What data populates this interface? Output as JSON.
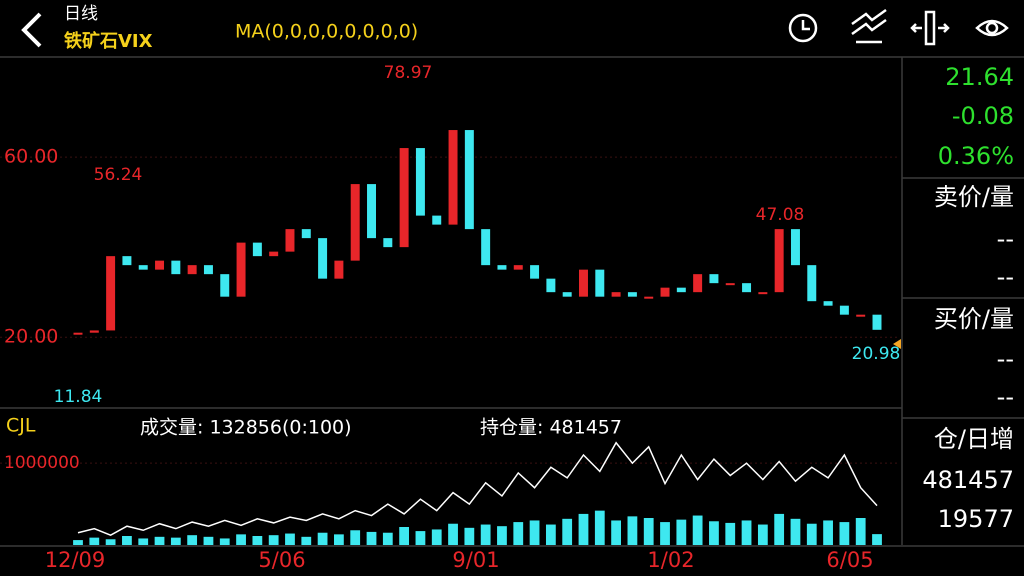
{
  "header": {
    "period": "日线",
    "symbol": "铁矿石VIX",
    "indicator": "MA(0,0,0,0,0,0,0,0)"
  },
  "quote": {
    "price": 21.64,
    "change": -0.08,
    "change_pct": "0.36%",
    "ask_title": "卖价/量",
    "ask_price": "--",
    "ask_volume": "--",
    "bid_title": "买价/量",
    "bid_price": "--",
    "bid_volume": "--",
    "oi_title": "仓/日增",
    "open_interest": 481457,
    "oi_change": 19577
  },
  "chart_data": [
    {
      "type": "candlestick",
      "ylim": [
        4.5,
        82
      ],
      "yticks": [
        {
          "value": 20,
          "label": "20.00"
        },
        {
          "value": 60,
          "label": "60.00"
        }
      ],
      "x_labels": [
        "12/09",
        "5/06",
        "9/01",
        "1/02",
        "6/05"
      ],
      "up_color": "#e8262a",
      "down_color": "#3ee8f0",
      "close": [
        21,
        21.5,
        38,
        36,
        35,
        37,
        34,
        36,
        34,
        29,
        41,
        38,
        39,
        44,
        42,
        33,
        37,
        54,
        42,
        40,
        62,
        47,
        45,
        66,
        44,
        36,
        35,
        36,
        33,
        30,
        29,
        35,
        29,
        30,
        29,
        29,
        31,
        30,
        34,
        32,
        32,
        30,
        30,
        44,
        36,
        28,
        27,
        25,
        25,
        21.64
      ],
      "annotations": [
        56.24,
        78.97,
        47.08,
        11.84,
        20.98
      ]
    },
    {
      "type": "bar",
      "title": "CJL",
      "ylim": [
        0,
        1650000
      ],
      "yticks": [
        1000000
      ],
      "volume_label": "成交量: 132856(0:100)",
      "oi_label": "持仓量: 481457",
      "series": [
        {
          "name": "成交量",
          "color": "#3ee8f0",
          "values": [
            60000,
            90000,
            70000,
            110000,
            80000,
            100000,
            90000,
            120000,
            100000,
            80000,
            130000,
            110000,
            120000,
            140000,
            100000,
            150000,
            130000,
            180000,
            160000,
            150000,
            220000,
            170000,
            190000,
            260000,
            210000,
            250000,
            230000,
            280000,
            300000,
            250000,
            320000,
            380000,
            420000,
            300000,
            350000,
            330000,
            280000,
            310000,
            360000,
            290000,
            270000,
            300000,
            250000,
            380000,
            320000,
            260000,
            300000,
            280000,
            330000,
            132856
          ]
        },
        {
          "name": "持仓量",
          "color": "#ffffff",
          "values": [
            150000,
            200000,
            120000,
            230000,
            180000,
            260000,
            200000,
            280000,
            230000,
            300000,
            240000,
            320000,
            270000,
            340000,
            300000,
            380000,
            320000,
            420000,
            360000,
            500000,
            380000,
            560000,
            420000,
            640000,
            500000,
            760000,
            600000,
            880000,
            700000,
            950000,
            820000,
            1100000,
            900000,
            1250000,
            1000000,
            1200000,
            750000,
            1100000,
            800000,
            1050000,
            850000,
            1000000,
            800000,
            1020000,
            780000,
            950000,
            820000,
            1100000,
            700000,
            481457
          ]
        }
      ]
    }
  ]
}
